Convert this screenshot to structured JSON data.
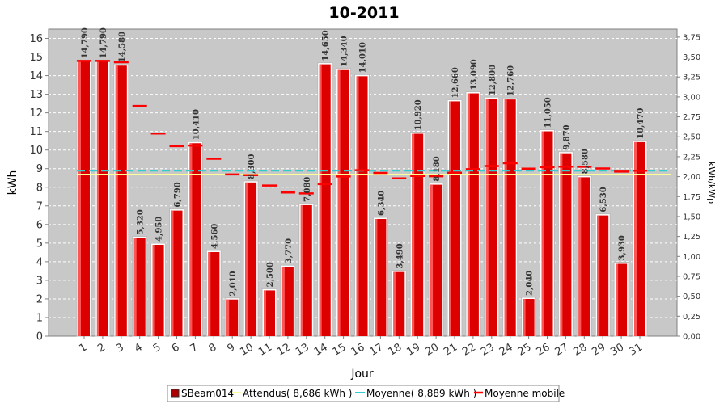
{
  "chart_data": {
    "type": "bar",
    "title": "10-2011",
    "xlabel": "Jour",
    "ylabel": "kWh",
    "ylabel_right": "kWh/kWp",
    "ylim": [
      0,
      16.5
    ],
    "ylim_right": [
      0,
      3.85
    ],
    "yticks": [
      0,
      1,
      2,
      3,
      4,
      5,
      6,
      7,
      8,
      9,
      10,
      11,
      12,
      13,
      14,
      15,
      16
    ],
    "yticks_right": [
      "0,00",
      "0,25",
      "0,50",
      "0,75",
      "1,00",
      "1,25",
      "1,50",
      "1,75",
      "2,00",
      "2,25",
      "2,50",
      "2,75",
      "3,00",
      "3,25",
      "3,50",
      "3,75"
    ],
    "categories": [
      "1",
      "2",
      "3",
      "4",
      "5",
      "6",
      "7",
      "8",
      "9",
      "10",
      "11",
      "12",
      "13",
      "14",
      "15",
      "16",
      "17",
      "18",
      "19",
      "20",
      "21",
      "22",
      "23",
      "24",
      "25",
      "26",
      "27",
      "28",
      "29",
      "30",
      "31"
    ],
    "series": [
      {
        "name": "SBeam014",
        "color": "#dd0000",
        "values": [
          14.79,
          14.79,
          14.58,
          5.32,
          4.95,
          6.79,
          10.41,
          4.56,
          2.01,
          8.3,
          2.5,
          3.77,
          7.08,
          14.65,
          14.34,
          14.01,
          6.34,
          3.49,
          10.92,
          8.18,
          12.66,
          13.09,
          12.8,
          12.76,
          2.04,
          11.05,
          9.87,
          8.58,
          6.53,
          3.93,
          10.47
        ],
        "labels": [
          "14,790",
          "14,790",
          "14,580",
          "5,320",
          "4,950",
          "6,790",
          "10,410",
          "4,560",
          "2,010",
          "8,300",
          "2,500",
          "3,770",
          "7,080",
          "14,650",
          "14,340",
          "14,010",
          "6,340",
          "3,490",
          "10,920",
          "8,180",
          "12,660",
          "13,090",
          "12,800",
          "12,760",
          "2,040",
          "11,050",
          "9,870",
          "8,580",
          "6,530",
          "3,930",
          "10,470"
        ]
      },
      {
        "name": "Attendus( 8,686 kWh )",
        "color": "#ffff99",
        "value": 8.686
      },
      {
        "name": "Moyenne( 8,889 kWh )",
        "color": "#33cccc",
        "value": 8.889
      },
      {
        "name": "Moyenne mobile",
        "color": "#ff0000",
        "values": [
          14.79,
          14.79,
          14.72,
          12.37,
          10.89,
          10.21,
          10.24,
          9.53,
          8.69,
          8.65,
          8.09,
          7.72,
          7.67,
          8.17,
          8.58,
          8.92,
          8.77,
          8.48,
          8.61,
          8.59,
          8.78,
          8.97,
          9.14,
          9.29,
          9.0,
          9.08,
          9.11,
          9.1,
          9.01,
          8.84,
          8.89
        ]
      }
    ],
    "legend_position": "bottom",
    "grid": true
  }
}
